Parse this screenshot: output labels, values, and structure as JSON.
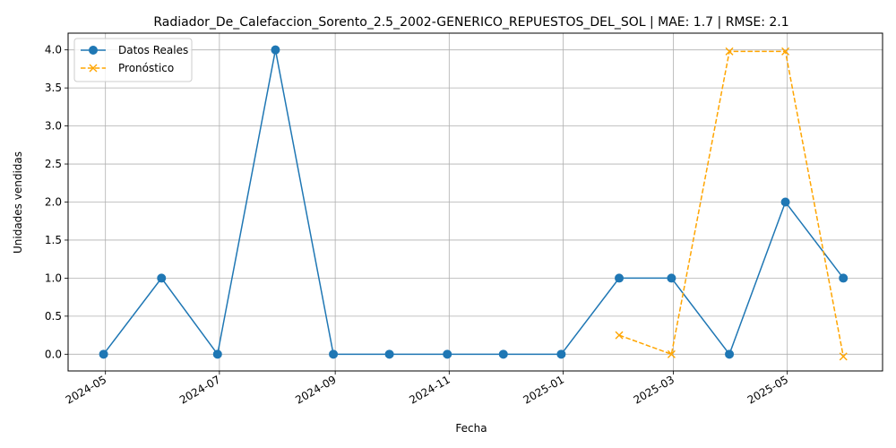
{
  "chart_data": {
    "type": "line",
    "title": "Radiador_De_Calefaccion_Sorento_2.5_2002-GENERICO_REPUESTOS_DEL_SOL | MAE: 1.7 | RMSE: 2.1",
    "xlabel": "Fecha",
    "ylabel": "Unidades vendidas",
    "ylim": [
      -0.22,
      4.22
    ],
    "xlim": [
      "2024-04-11",
      "2025-06-21"
    ],
    "grid": true,
    "legend_position": "top-left",
    "x_ticks": [
      "2024-05",
      "2024-07",
      "2024-09",
      "2024-11",
      "2025-01",
      "2025-03",
      "2025-05"
    ],
    "y_ticks": [
      "0.0",
      "0.5",
      "1.0",
      "1.5",
      "2.0",
      "2.5",
      "3.0",
      "3.5",
      "4.0"
    ],
    "series": [
      {
        "name": "Datos Reales",
        "color": "#1f77b4",
        "style": "solid",
        "marker": "circle",
        "x": [
          "2024-04-30",
          "2024-05-31",
          "2024-06-30",
          "2024-07-31",
          "2024-08-31",
          "2024-09-30",
          "2024-10-31",
          "2024-11-30",
          "2024-12-31",
          "2025-01-31",
          "2025-02-28",
          "2025-03-31",
          "2025-04-30",
          "2025-05-31"
        ],
        "values": [
          0,
          1,
          0,
          4,
          0,
          0,
          0,
          0,
          0,
          1,
          1,
          0,
          2,
          1
        ]
      },
      {
        "name": "Pronóstico",
        "color": "#ffa500",
        "style": "dashed",
        "marker": "x",
        "x": [
          "2025-01-31",
          "2025-02-28",
          "2025-03-31",
          "2025-04-30",
          "2025-05-31"
        ],
        "values": [
          0.25,
          0.0,
          3.98,
          3.98,
          -0.03
        ]
      }
    ]
  }
}
